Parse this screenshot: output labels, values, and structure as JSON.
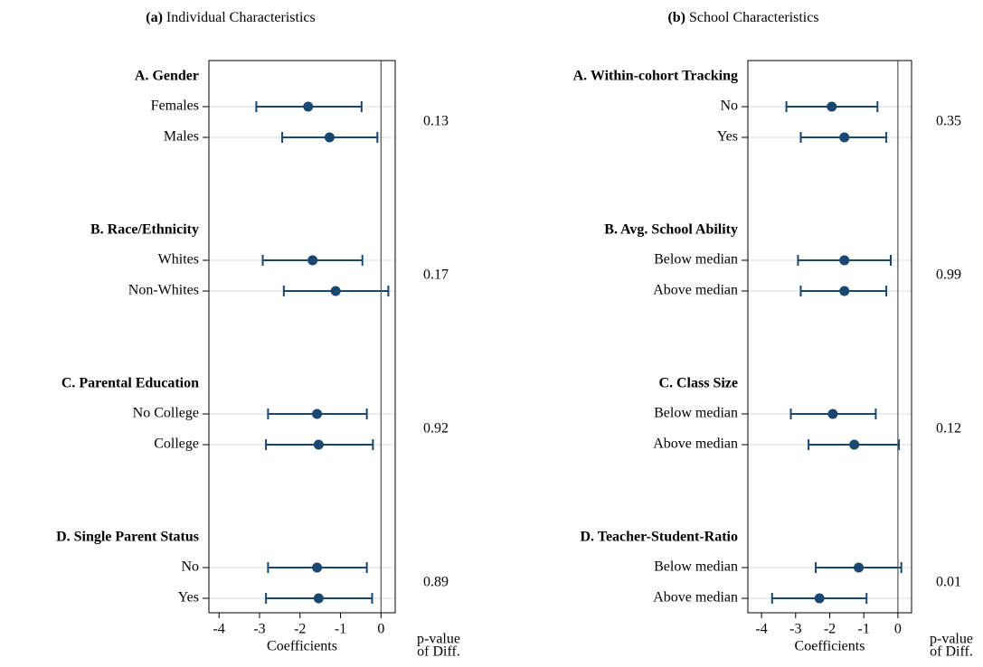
{
  "chart_data": [
    {
      "type": "coefplot",
      "panel_label": "(a)",
      "title": "Individual Characteristics",
      "xlabel": "Coefficients",
      "pvalue_label": [
        "p-value",
        "of Diff."
      ],
      "xlim": [
        -4.25,
        0.35
      ],
      "xticks": [
        -4,
        -3,
        -2,
        -1,
        0
      ],
      "refline": 0,
      "color": "#1a476f",
      "grid": true,
      "groups": [
        {
          "name": "A. Gender",
          "categories": [
            "Females",
            "Males"
          ],
          "values": [
            -1.8,
            -1.27
          ],
          "lower": [
            -3.08,
            -2.44
          ],
          "upper": [
            -0.48,
            -0.09
          ],
          "pvalue": 0.13
        },
        {
          "name": "B. Race/Ethnicity",
          "categories": [
            "Whites",
            "Non-Whites"
          ],
          "values": [
            -1.69,
            -1.12
          ],
          "lower": [
            -2.92,
            -2.4
          ],
          "upper": [
            -0.46,
            0.18
          ],
          "pvalue": 0.17
        },
        {
          "name": "C. Parental Education",
          "categories": [
            "No College",
            "College"
          ],
          "values": [
            -1.58,
            -1.54
          ],
          "lower": [
            -2.79,
            -2.84
          ],
          "upper": [
            -0.35,
            -0.2
          ],
          "pvalue": 0.92
        },
        {
          "name": "D. Single Parent Status",
          "categories": [
            "No",
            "Yes"
          ],
          "values": [
            -1.58,
            -1.54
          ],
          "lower": [
            -2.79,
            -2.84
          ],
          "upper": [
            -0.35,
            -0.22
          ],
          "pvalue": 0.89
        }
      ]
    },
    {
      "type": "coefplot",
      "panel_label": "(b)",
      "title": "School Characteristics",
      "xlabel": "Coefficients",
      "pvalue_label": [
        "p-value",
        "of Diff."
      ],
      "xlim": [
        -4.4,
        0.4
      ],
      "xticks": [
        -4,
        -3,
        -2,
        -1,
        0
      ],
      "refline": 0,
      "color": "#1a476f",
      "grid": true,
      "groups": [
        {
          "name": "A. Within-cohort Tracking",
          "categories": [
            "No",
            "Yes"
          ],
          "values": [
            -1.94,
            -1.57
          ],
          "lower": [
            -3.27,
            -2.85
          ],
          "upper": [
            -0.6,
            -0.34
          ],
          "pvalue": 0.35
        },
        {
          "name": "B. Avg. School Ability",
          "categories": [
            "Below median",
            "Above median"
          ],
          "values": [
            -1.57,
            -1.57
          ],
          "lower": [
            -2.93,
            -2.85
          ],
          "upper": [
            -0.21,
            -0.34
          ],
          "pvalue": 0.99
        },
        {
          "name": "C. Class Size",
          "categories": [
            "Below median",
            "Above median"
          ],
          "values": [
            -1.91,
            -1.28
          ],
          "lower": [
            -3.14,
            -2.62
          ],
          "upper": [
            -0.65,
            0.03
          ],
          "pvalue": 0.12
        },
        {
          "name": "D. Teacher-Student-Ratio",
          "categories": [
            "Below median",
            "Above median"
          ],
          "values": [
            -1.15,
            -2.3
          ],
          "lower": [
            -2.41,
            -3.69
          ],
          "upper": [
            0.1,
            -0.92
          ],
          "pvalue": 0.01
        }
      ]
    }
  ]
}
